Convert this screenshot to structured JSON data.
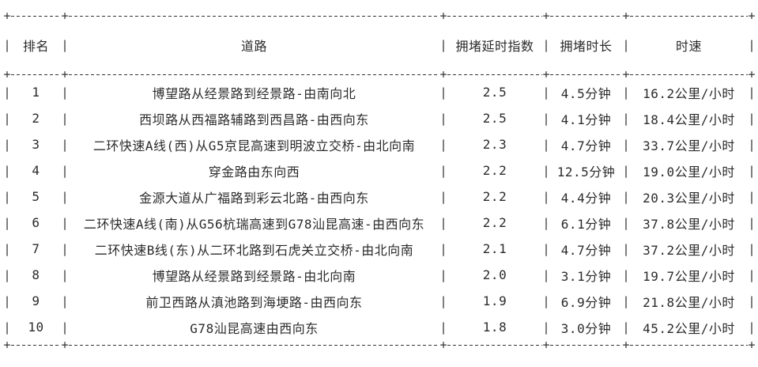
{
  "meta": {
    "background_color": "#ffffff",
    "text_color": "#2b2b2b",
    "border_color": "#333333"
  },
  "chart_data": {
    "type": "table",
    "title": "",
    "columns": [
      "排名",
      "道路",
      "拥堵延时指数",
      "拥堵时长",
      "时速"
    ],
    "column_keys": [
      "rank",
      "road",
      "delay_index",
      "duration",
      "speed"
    ],
    "align": "center",
    "rows": [
      {
        "rank": "1",
        "road": "博望路从经景路到经景路-由南向北",
        "delay_index": "2.5",
        "duration": "4.5分钟",
        "speed": "16.2公里/小时"
      },
      {
        "rank": "2",
        "road": "西坝路从西福路辅路到西昌路-由西向东",
        "delay_index": "2.5",
        "duration": "4.1分钟",
        "speed": "18.4公里/小时"
      },
      {
        "rank": "3",
        "road": "二环快速A线(西)从G5京昆高速到明波立交桥-由北向南",
        "delay_index": "2.3",
        "duration": "4.7分钟",
        "speed": "33.7公里/小时"
      },
      {
        "rank": "4",
        "road": "穿金路由东向西",
        "delay_index": "2.2",
        "duration": "12.5分钟",
        "speed": "19.0公里/小时"
      },
      {
        "rank": "5",
        "road": "金源大道从广福路到彩云北路-由西向东",
        "delay_index": "2.2",
        "duration": "4.4分钟",
        "speed": "20.3公里/小时"
      },
      {
        "rank": "6",
        "road": "二环快速A线(南)从G56杭瑞高速到G78汕昆高速-由西向东",
        "delay_index": "2.2",
        "duration": "6.1分钟",
        "speed": "37.8公里/小时"
      },
      {
        "rank": "7",
        "road": "二环快速B线(东)从二环北路到石虎关立交桥-由北向南",
        "delay_index": "2.1",
        "duration": "4.7分钟",
        "speed": "37.2公里/小时"
      },
      {
        "rank": "8",
        "road": "博望路从经景路到经景路-由北向南",
        "delay_index": "2.0",
        "duration": "3.1分钟",
        "speed": "19.7公里/小时"
      },
      {
        "rank": "9",
        "road": "前卫西路从滇池路到海埂路-由西向东",
        "delay_index": "1.9",
        "duration": "6.9分钟",
        "speed": "21.8公里/小时"
      },
      {
        "rank": "10",
        "road": "G78汕昆高速由西向东",
        "delay_index": "1.8",
        "duration": "3.0分钟",
        "speed": "45.2公里/小时"
      }
    ]
  }
}
